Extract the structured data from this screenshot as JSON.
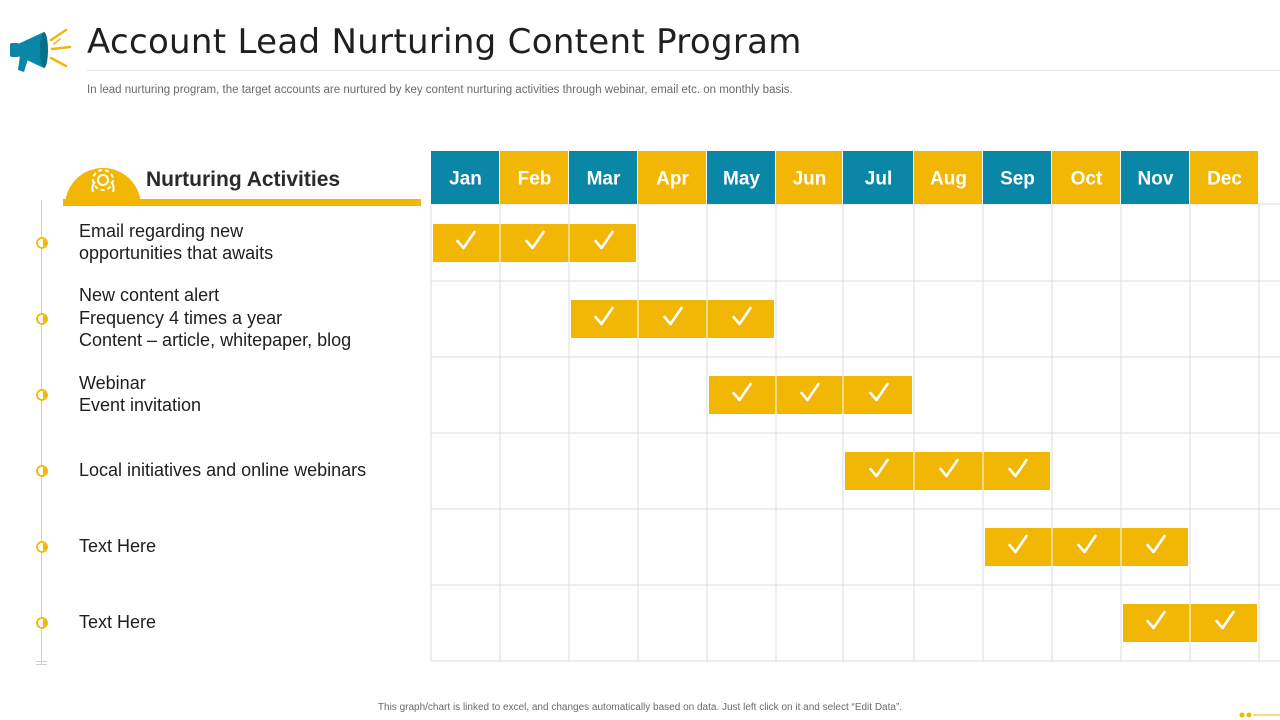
{
  "header": {
    "title": "Account Lead Nurturing Content Program",
    "subtitle": "In lead nurturing program, the target accounts are nurtured by key content nurturing activities through webinar, email etc. on monthly basis."
  },
  "panel": {
    "label": "Nurturing Activities",
    "icon": "gear-icon"
  },
  "activities": [
    {
      "lines": [
        "Email regarding new",
        "opportunities that awaits"
      ],
      "months": [
        1,
        2,
        3
      ]
    },
    {
      "lines": [
        "New content alert",
        "Frequency 4 times a year",
        "Content – article, whitepaper, blog"
      ],
      "months": [
        3,
        4,
        5
      ]
    },
    {
      "lines": [
        "Webinar",
        "Event invitation"
      ],
      "months": [
        5,
        6,
        7
      ]
    },
    {
      "lines": [
        "Local initiatives and online webinars"
      ],
      "months": [
        7,
        8,
        9
      ]
    },
    {
      "lines": [
        "Text Here"
      ],
      "months": [
        9,
        10,
        11
      ]
    },
    {
      "lines": [
        "Text Here"
      ],
      "months": [
        11,
        12
      ]
    }
  ],
  "months": [
    "Jan",
    "Feb",
    "Mar",
    "Apr",
    "May",
    "Jun",
    "Jul",
    "Aug",
    "Sep",
    "Oct",
    "Nov",
    "Dec"
  ],
  "colors": {
    "blue": "#0a86a7",
    "yellow": "#f2b705",
    "grid": "#dcdcdc"
  },
  "footer": "This graph/chart is linked to excel, and changes automatically based on data. Just left click on it and select “Edit Data”."
}
